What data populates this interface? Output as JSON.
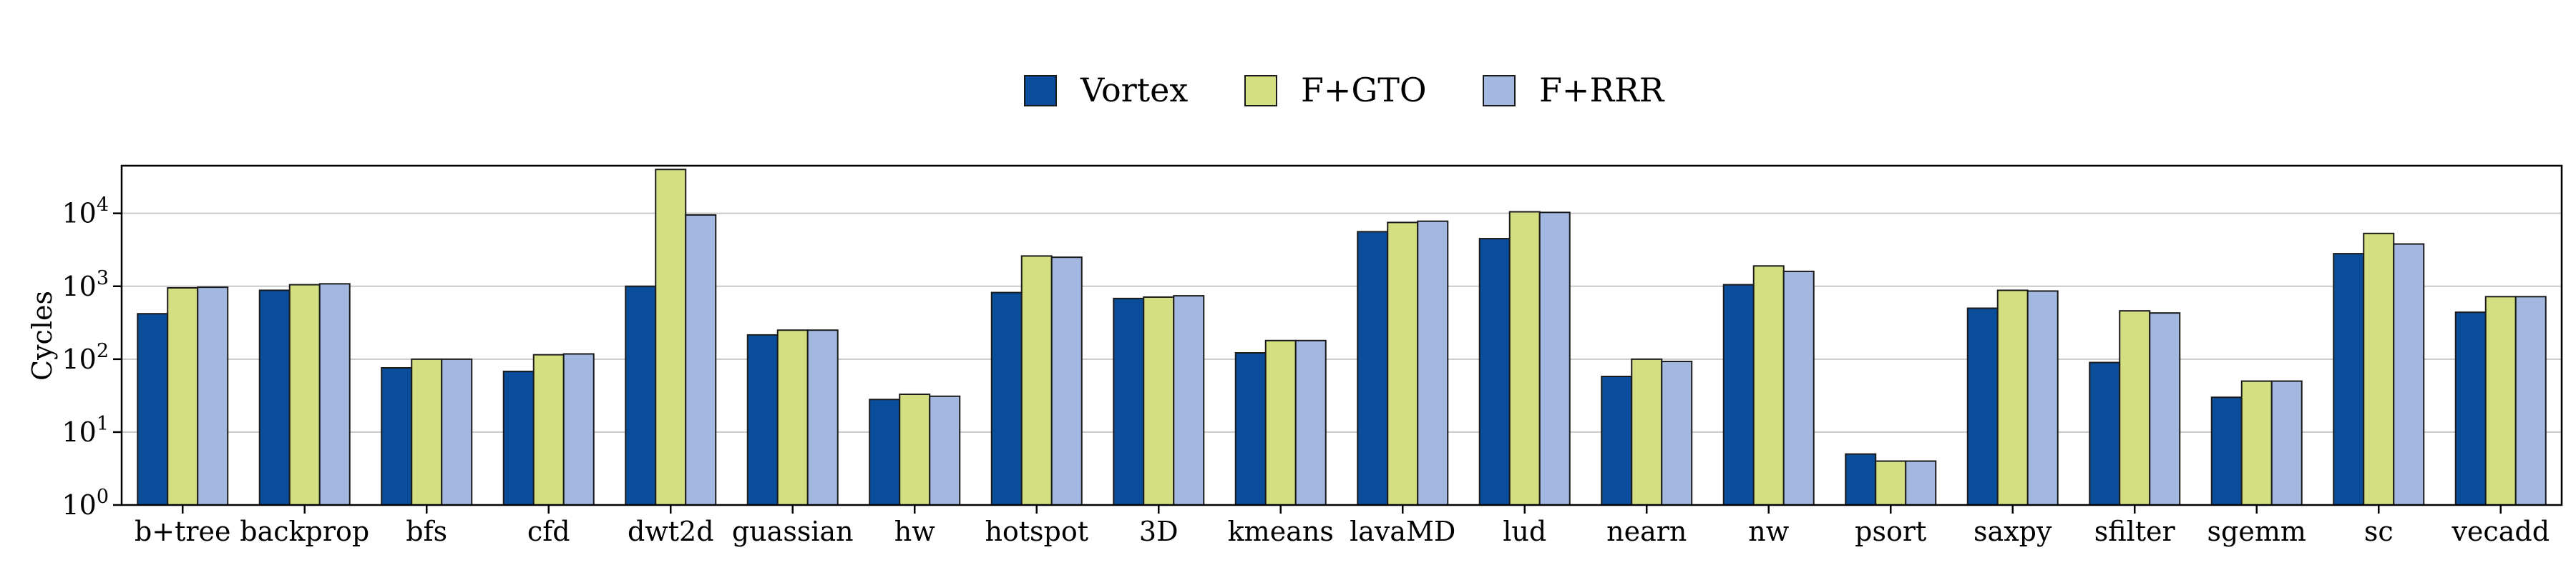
{
  "chart_data": {
    "type": "bar",
    "yscale": "log",
    "ylim": [
      1,
      45000
    ],
    "ylabel": "Cycles",
    "xlabel": "",
    "title": "",
    "grid": "horizontal, at decades",
    "legend": "top-center",
    "yticks": [
      "10^0",
      "10^1",
      "10^2",
      "10^3",
      "10^4"
    ],
    "categories": [
      "b+tree",
      "backprop",
      "bfs",
      "cfd",
      "dwt2d",
      "guassian",
      "hw",
      "hotspot",
      "3D",
      "kmeans",
      "lavaMD",
      "lud",
      "nearn",
      "nw",
      "psort",
      "saxpy",
      "sfilter",
      "sgemm",
      "sc",
      "vecadd"
    ],
    "series": [
      {
        "name": "Vortex",
        "color": "#0a4e9b",
        "values": [
          420,
          880,
          76,
          68,
          1000,
          215,
          28,
          820,
          680,
          122,
          5600,
          4500,
          58,
          1050,
          5,
          500,
          90,
          30,
          2800,
          440
        ]
      },
      {
        "name": "F+GTO",
        "color": "#d4df82",
        "values": [
          950,
          1050,
          100,
          115,
          40000,
          250,
          33,
          2600,
          710,
          180,
          7500,
          10500,
          100,
          1900,
          4,
          880,
          460,
          50,
          5300,
          720
        ]
      },
      {
        "name": "F+RRR",
        "color": "#a3b8e0",
        "values": [
          970,
          1080,
          100,
          118,
          9500,
          250,
          31,
          2500,
          740,
          180,
          7800,
          10300,
          93,
          1600,
          4,
          860,
          430,
          50,
          3800,
          720
        ]
      }
    ]
  }
}
